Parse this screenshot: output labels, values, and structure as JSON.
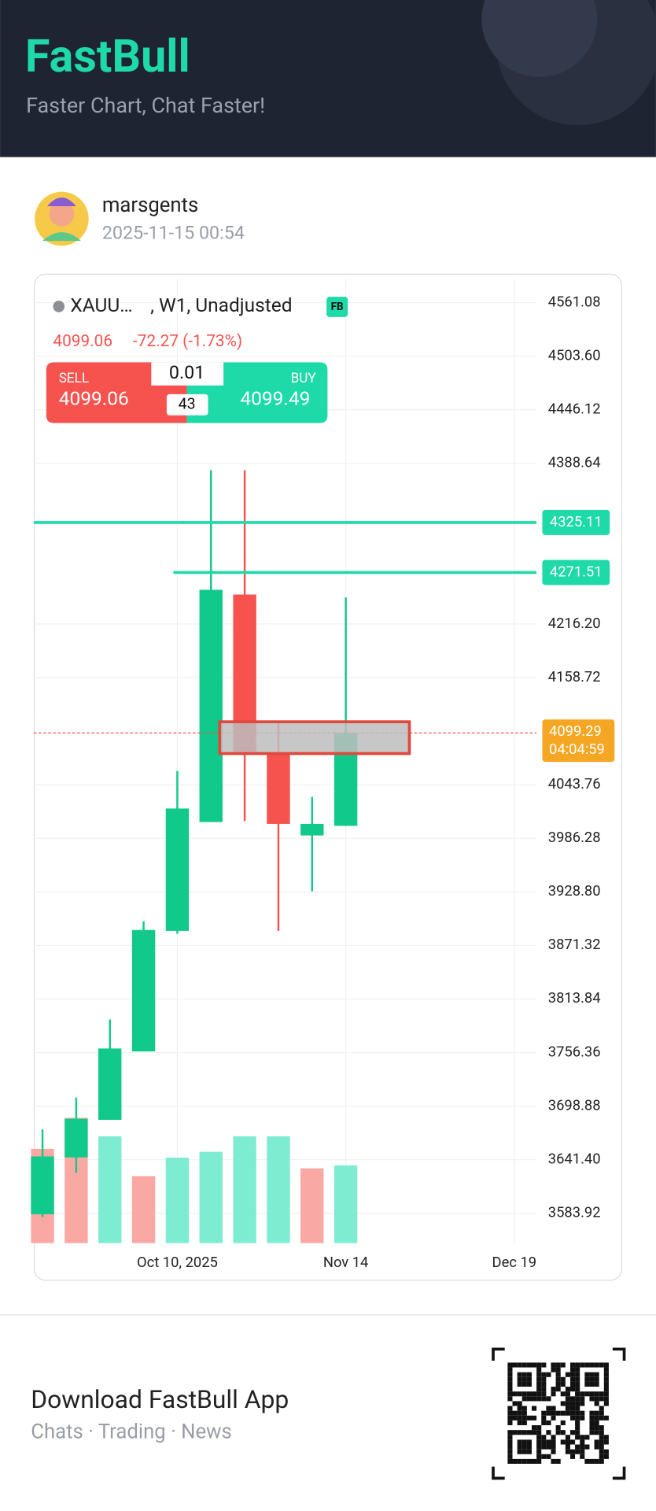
{
  "header": {
    "brand": "FastBull",
    "tagline": "Faster Chart, Chat Faster!"
  },
  "post": {
    "user": "marsgents",
    "time": "2025-11-15 00:54"
  },
  "chart_data": {
    "type": "candlestick",
    "symbol": "XAUU…",
    "details": ", W1, Unadjusted",
    "badge": "FB",
    "last": "4099.06",
    "change": "-72.27 (-1.73%)",
    "trade": {
      "sell_label": "SELL",
      "sell": "4099.06",
      "buy_label": "BUY",
      "buy": "4099.49",
      "lot": "0.01",
      "spread": "43"
    },
    "open": [
      3582.9,
      3643.9,
      3684.2,
      3757.6,
      3886.9,
      4003.7,
      4247.8,
      4077.2,
      3989.3,
      3999.6
    ],
    "high": [
      3673.9,
      3708.0,
      3791.8,
      3897.2,
      4058.5,
      4381.2,
      4381.2,
      4110.3,
      4030.6,
      4244.7
    ],
    "low": [
      3579.8,
      3627.4,
      3684.2,
      3757.6,
      3883.8,
      4003.7,
      4004.8,
      3886.9,
      3929.3,
      3999.6
    ],
    "close": [
      3644.9,
      3685.3,
      3760.7,
      3887.9,
      4018.2,
      4252.9,
      4077.2,
      4001.7,
      4001.7,
      4099.3
    ],
    "up_color": "#10c98a",
    "down_color": "#f6534f",
    "volume": {
      "values": [
        97,
        129,
        110,
        69,
        88,
        94,
        110,
        110,
        77,
        80
      ],
      "colors": [
        "#f9a8a4",
        "#f9a8a4",
        "#7eecd1",
        "#f9a8a4",
        "#7eecd1",
        "#7eecd1",
        "#7eecd1",
        "#7eecd1",
        "#f9a8a4",
        "#7eecd1"
      ]
    },
    "xlim": [
      -0.26,
      14.66
    ],
    "xticks": [
      {
        "value": 4,
        "label": "Oct 10, 2025"
      },
      {
        "value": 9,
        "label": "Nov 14"
      },
      {
        "value": 14,
        "label": "Dec 19"
      }
    ],
    "ylim": [
      3551.9,
      4585.9
    ],
    "yticks": [
      4561.08,
      {
        "value": 4503.6,
        "label": "4503.60"
      },
      4446.12,
      4388.64,
      {
        "value": 4216.2,
        "label": "4216.20"
      },
      4158.72,
      4043.76,
      3986.28,
      {
        "value": 3928.8,
        "label": "3928.80"
      },
      3871.32,
      3813.84,
      3756.36,
      3698.88,
      {
        "value": 3641.4,
        "label": "3641.40"
      },
      3583.92
    ],
    "lines": [
      {
        "value": 4325.11,
        "label": "4325.11",
        "color": "#1ed9a8"
      },
      {
        "value": 4271.51,
        "label": "4271.51",
        "color": "#1ed9a8"
      }
    ],
    "price_line": {
      "value": 4099.29,
      "label": "4099.29",
      "countdown": "04:04:59",
      "color": "#f5a623"
    }
  },
  "footer": {
    "title": "Download FastBull App",
    "subtitle": "Chats · Trading · News"
  }
}
